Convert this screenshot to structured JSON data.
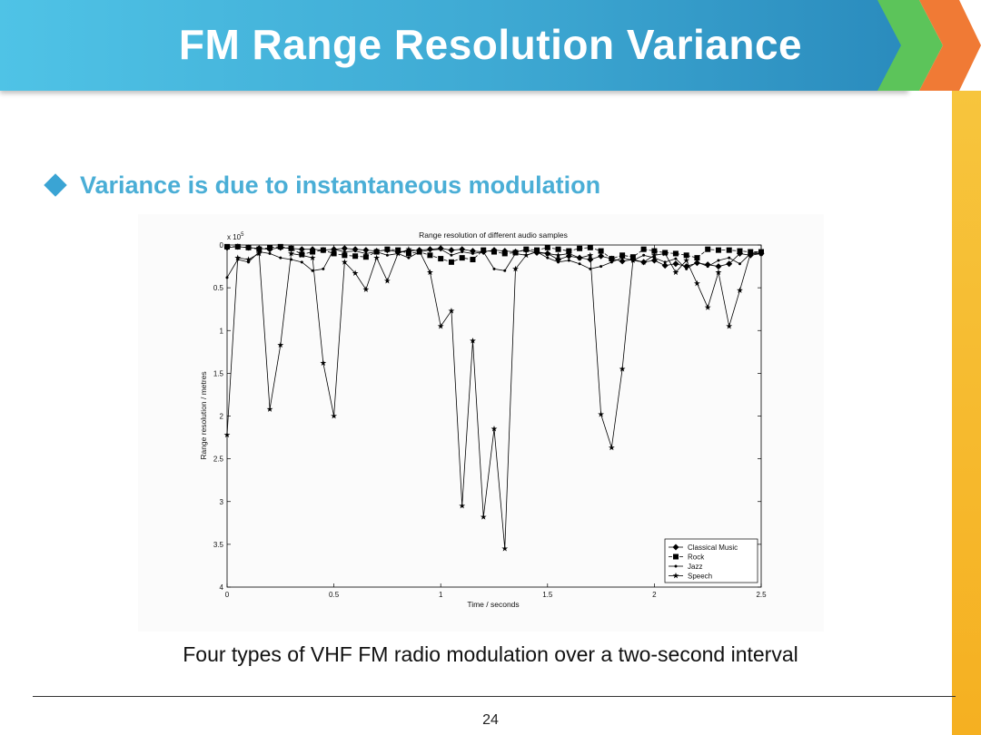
{
  "slide": {
    "title": "FM Range Resolution Variance",
    "bullet": "Variance is due to instantaneous modulation",
    "caption": "Four types of VHF FM radio modulation over a two-second interval",
    "page_number": "24"
  },
  "colors": {
    "header": "#3ea9d3",
    "bullet": "#4aaed6",
    "chevron_green": "#5cc45a",
    "chevron_orange": "#f07a35",
    "side_bar": "#f5b021"
  },
  "chart_data": {
    "type": "line",
    "title": "Range resolution of different audio samples",
    "xlabel": "Time / seconds",
    "ylabel": "Range resolution / metres",
    "multiplier_label": "x 10",
    "multiplier_exponent": "5",
    "xlim": [
      0,
      2.5
    ],
    "ylim": [
      0,
      4
    ],
    "y_inverted": true,
    "x_ticks": [
      0,
      0.5,
      1,
      1.5,
      2,
      2.5
    ],
    "x_tick_labels": [
      "0",
      "0.5",
      "1",
      "1.5",
      "2",
      "2.5"
    ],
    "y_ticks": [
      0,
      0.5,
      1,
      1.5,
      2,
      2.5,
      3,
      3.5,
      4
    ],
    "y_tick_labels": [
      "0",
      "0.5",
      "1",
      "1.5",
      "2",
      "2.5",
      "3",
      "3.5",
      "4"
    ],
    "legend_position": "bottom-right",
    "series": [
      {
        "name": "Classical Music",
        "marker": "diamond",
        "x": [
          0,
          0.05,
          0.1,
          0.15,
          0.2,
          0.25,
          0.3,
          0.35,
          0.4,
          0.45,
          0.5,
          0.55,
          0.6,
          0.65,
          0.7,
          0.75,
          0.8,
          0.85,
          0.9,
          0.95,
          1.0,
          1.05,
          1.1,
          1.15,
          1.2,
          1.25,
          1.3,
          1.35,
          1.4,
          1.45,
          1.5,
          1.55,
          1.6,
          1.65,
          1.7,
          1.75,
          1.8,
          1.85,
          1.9,
          1.95,
          2.0,
          2.05,
          2.1,
          2.15,
          2.2,
          2.25,
          2.3,
          2.35,
          2.4,
          2.45,
          2.5
        ],
        "y": [
          0.03,
          0.02,
          0.03,
          0.04,
          0.05,
          0.03,
          0.04,
          0.05,
          0.05,
          0.06,
          0.05,
          0.04,
          0.05,
          0.06,
          0.07,
          0.06,
          0.08,
          0.07,
          0.06,
          0.05,
          0.04,
          0.06,
          0.05,
          0.07,
          0.08,
          0.06,
          0.07,
          0.08,
          0.06,
          0.09,
          0.1,
          0.17,
          0.13,
          0.15,
          0.17,
          0.13,
          0.16,
          0.19,
          0.17,
          0.2,
          0.18,
          0.24,
          0.22,
          0.25,
          0.21,
          0.23,
          0.25,
          0.22,
          0.1,
          0.12,
          0.1
        ]
      },
      {
        "name": "Rock",
        "marker": "square",
        "x": [
          0,
          0.05,
          0.1,
          0.15,
          0.2,
          0.25,
          0.3,
          0.35,
          0.4,
          0.45,
          0.5,
          0.55,
          0.6,
          0.65,
          0.7,
          0.75,
          0.8,
          0.85,
          0.9,
          0.95,
          1.0,
          1.05,
          1.1,
          1.15,
          1.2,
          1.25,
          1.3,
          1.35,
          1.4,
          1.45,
          1.5,
          1.55,
          1.6,
          1.65,
          1.7,
          1.75,
          1.8,
          1.85,
          1.9,
          1.95,
          2.0,
          2.05,
          2.1,
          2.15,
          2.2,
          2.25,
          2.3,
          2.35,
          2.4,
          2.45,
          2.5
        ],
        "y": [
          0.02,
          0.02,
          0.03,
          0.05,
          0.03,
          0.02,
          0.04,
          0.11,
          0.08,
          0.06,
          0.1,
          0.12,
          0.13,
          0.14,
          0.08,
          0.05,
          0.06,
          0.1,
          0.08,
          0.12,
          0.16,
          0.2,
          0.15,
          0.17,
          0.06,
          0.08,
          0.1,
          0.09,
          0.05,
          0.06,
          0.03,
          0.05,
          0.07,
          0.04,
          0.03,
          0.07,
          0.16,
          0.12,
          0.14,
          0.05,
          0.07,
          0.09,
          0.1,
          0.12,
          0.15,
          0.05,
          0.06,
          0.06,
          0.07,
          0.08,
          0.08
        ]
      },
      {
        "name": "Jazz",
        "marker": "dot",
        "x": [
          0,
          0.05,
          0.1,
          0.15,
          0.2,
          0.25,
          0.3,
          0.35,
          0.4,
          0.45,
          0.5,
          0.55,
          0.6,
          0.65,
          0.7,
          0.75,
          0.8,
          0.85,
          0.9,
          0.95,
          1.0,
          1.05,
          1.1,
          1.15,
          1.2,
          1.25,
          1.3,
          1.35,
          1.4,
          1.45,
          1.5,
          1.55,
          1.6,
          1.65,
          1.7,
          1.75,
          1.8,
          1.85,
          1.9,
          1.95,
          2.0,
          2.05,
          2.1,
          2.15,
          2.2,
          2.25,
          2.3,
          2.35,
          2.4,
          2.45,
          2.5
        ],
        "y": [
          0.38,
          0.17,
          0.2,
          0.08,
          0.1,
          0.15,
          0.17,
          0.2,
          0.3,
          0.28,
          0.05,
          0.08,
          0.07,
          0.1,
          0.08,
          0.12,
          0.1,
          0.15,
          0.08,
          0.06,
          0.05,
          0.12,
          0.08,
          0.1,
          0.08,
          0.28,
          0.3,
          0.1,
          0.12,
          0.08,
          0.15,
          0.2,
          0.18,
          0.22,
          0.28,
          0.25,
          0.2,
          0.15,
          0.18,
          0.12,
          0.15,
          0.2,
          0.16,
          0.28,
          0.2,
          0.25,
          0.18,
          0.15,
          0.22,
          0.1,
          0.08
        ]
      },
      {
        "name": "Speech",
        "marker": "star",
        "x": [
          0,
          0.05,
          0.1,
          0.15,
          0.2,
          0.25,
          0.3,
          0.35,
          0.4,
          0.45,
          0.5,
          0.55,
          0.6,
          0.65,
          0.7,
          0.75,
          0.8,
          0.85,
          0.9,
          0.95,
          1.0,
          1.05,
          1.1,
          1.15,
          1.2,
          1.25,
          1.3,
          1.35,
          1.4,
          1.45,
          1.5,
          1.55,
          1.6,
          1.65,
          1.7,
          1.75,
          1.8,
          1.85,
          1.9,
          1.95,
          2.0,
          2.05,
          2.1,
          2.15,
          2.2,
          2.25,
          2.3,
          2.35,
          2.4,
          2.45,
          2.5
        ],
        "y": [
          2.22,
          0.15,
          0.17,
          0.1,
          1.92,
          1.17,
          0.1,
          0.12,
          0.15,
          1.38,
          2.0,
          0.2,
          0.33,
          0.52,
          0.15,
          0.42,
          0.1,
          0.05,
          0.07,
          0.32,
          0.95,
          0.77,
          3.05,
          1.12,
          3.18,
          2.15,
          3.55,
          0.28,
          0.12,
          0.08,
          0.1,
          0.12,
          0.1,
          0.15,
          0.12,
          1.98,
          2.37,
          1.45,
          0.18,
          0.2,
          0.12,
          0.1,
          0.32,
          0.18,
          0.45,
          0.73,
          0.32,
          0.95,
          0.53,
          0.1,
          0.1
        ]
      }
    ]
  }
}
